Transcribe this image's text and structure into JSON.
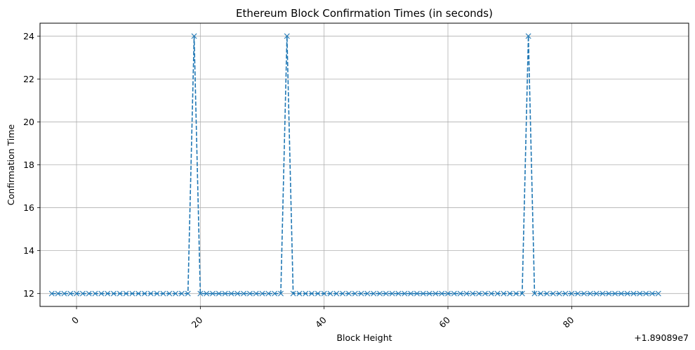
{
  "chart_data": {
    "type": "line",
    "title": "Ethereum Block Confirmation Times (in seconds)",
    "xlabel": "Block Height",
    "ylabel": "Confirmation Time",
    "x_offset_label": "+1.89089e7",
    "xlim": [
      -5.9,
      98.9
    ],
    "ylim": [
      11.4,
      24.6
    ],
    "xticks": [
      0,
      20,
      40,
      60,
      80
    ],
    "xtick_labels": [
      "0",
      "20",
      "40",
      "60",
      "80"
    ],
    "yticks": [
      12,
      14,
      16,
      18,
      20,
      22,
      24
    ],
    "ytick_labels": [
      "12",
      "14",
      "16",
      "18",
      "20",
      "22",
      "24"
    ],
    "grid": true,
    "line_style": "dashed",
    "marker": "x",
    "color": "#1f77b4",
    "series": [
      {
        "x": [
          -4,
          -3,
          -2,
          -1,
          0,
          1,
          2,
          3,
          4,
          5,
          6,
          7,
          8,
          9,
          10,
          11,
          12,
          13,
          14,
          15,
          16,
          17,
          18,
          19,
          20,
          21,
          22,
          23,
          24,
          25,
          26,
          27,
          28,
          29,
          30,
          31,
          32,
          33,
          34,
          35,
          36,
          37,
          38,
          39,
          40,
          41,
          42,
          43,
          44,
          45,
          46,
          47,
          48,
          49,
          50,
          51,
          52,
          53,
          54,
          55,
          56,
          57,
          58,
          59,
          60,
          61,
          62,
          63,
          64,
          65,
          66,
          67,
          68,
          69,
          70,
          71,
          72,
          73,
          74,
          75,
          76,
          77,
          78,
          79,
          80,
          81,
          82,
          83,
          84,
          85,
          86,
          87,
          88,
          89,
          90,
          91,
          92,
          93,
          94
        ],
        "y": [
          12,
          12,
          12,
          12,
          12,
          12,
          12,
          12,
          12,
          12,
          12,
          12,
          12,
          12,
          12,
          12,
          12,
          12,
          12,
          12,
          12,
          12,
          12,
          24,
          12,
          12,
          12,
          12,
          12,
          12,
          12,
          12,
          12,
          12,
          12,
          12,
          12,
          12,
          24,
          12,
          12,
          12,
          12,
          12,
          12,
          12,
          12,
          12,
          12,
          12,
          12,
          12,
          12,
          12,
          12,
          12,
          12,
          12,
          12,
          12,
          12,
          12,
          12,
          12,
          12,
          12,
          12,
          12,
          12,
          12,
          12,
          12,
          12,
          12,
          12,
          12,
          12,
          24,
          12,
          12,
          12,
          12,
          12,
          12,
          12,
          12,
          12,
          12,
          12,
          12,
          12,
          12,
          12,
          12,
          12,
          12,
          12,
          12,
          12
        ]
      }
    ]
  }
}
